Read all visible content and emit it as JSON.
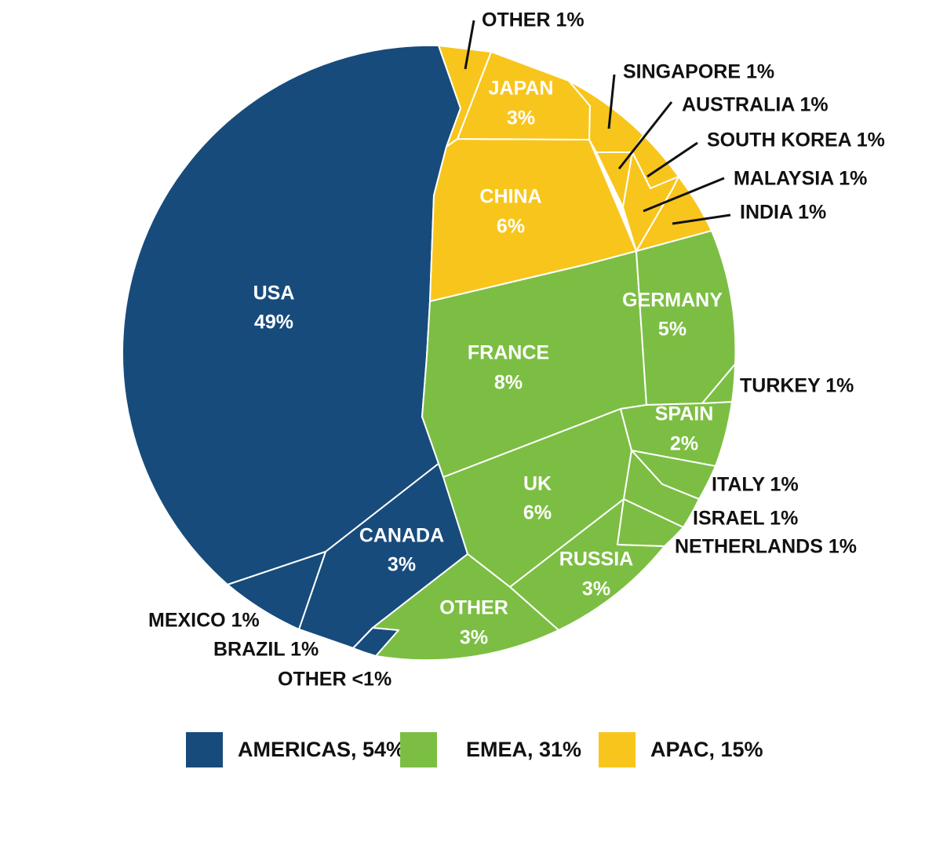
{
  "chart_data": {
    "type": "voronoi-treemap",
    "title": "",
    "regions": [
      {
        "name": "AMERICAS",
        "label": "AMERICAS, 54%",
        "value": 54,
        "color": "#174b7b"
      },
      {
        "name": "EMEA",
        "label": "EMEA, 31%",
        "value": 31,
        "color": "#7cbe43"
      },
      {
        "name": "APAC",
        "label": "APAC, 15%",
        "value": 15,
        "color": "#f8c51c"
      }
    ],
    "cells": [
      {
        "id": "usa",
        "region": "AMERICAS",
        "name": "USA",
        "pct": "49%",
        "value": 49
      },
      {
        "id": "canada",
        "region": "AMERICAS",
        "name": "CANADA",
        "pct": "3%",
        "value": 3
      },
      {
        "id": "mexico",
        "region": "AMERICAS",
        "name": "MEXICO 1%",
        "value": 1
      },
      {
        "id": "brazil",
        "region": "AMERICAS",
        "name": "BRAZIL 1%",
        "value": 1
      },
      {
        "id": "americas-other",
        "region": "AMERICAS",
        "name": "OTHER <1%",
        "value": 0.5
      },
      {
        "id": "china",
        "region": "APAC",
        "name": "CHINA",
        "pct": "6%",
        "value": 6
      },
      {
        "id": "japan",
        "region": "APAC",
        "name": "JAPAN",
        "pct": "3%",
        "value": 3
      },
      {
        "id": "apac-other",
        "region": "APAC",
        "name": "OTHER 1%",
        "value": 1
      },
      {
        "id": "singapore",
        "region": "APAC",
        "name": "SINGAPORE 1%",
        "value": 1
      },
      {
        "id": "australia",
        "region": "APAC",
        "name": "AUSTRALIA 1%",
        "value": 1
      },
      {
        "id": "south-korea",
        "region": "APAC",
        "name": "SOUTH KOREA 1%",
        "value": 1
      },
      {
        "id": "malaysia",
        "region": "APAC",
        "name": "MALAYSIA 1%",
        "value": 1
      },
      {
        "id": "india",
        "region": "APAC",
        "name": "INDIA 1%",
        "value": 1
      },
      {
        "id": "france",
        "region": "EMEA",
        "name": "FRANCE",
        "pct": "8%",
        "value": 8
      },
      {
        "id": "uk",
        "region": "EMEA",
        "name": "UK",
        "pct": "6%",
        "value": 6
      },
      {
        "id": "germany",
        "region": "EMEA",
        "name": "GERMANY",
        "pct": "5%",
        "value": 5
      },
      {
        "id": "russia",
        "region": "EMEA",
        "name": "RUSSIA",
        "pct": "3%",
        "value": 3
      },
      {
        "id": "emea-other",
        "region": "EMEA",
        "name": "OTHER",
        "pct": "3%",
        "value": 3
      },
      {
        "id": "spain",
        "region": "EMEA",
        "name": "SPAIN",
        "pct": "2%",
        "value": 2
      },
      {
        "id": "turkey",
        "region": "EMEA",
        "name": "TURKEY 1%",
        "value": 1
      },
      {
        "id": "italy",
        "region": "EMEA",
        "name": "ITALY 1%",
        "value": 1
      },
      {
        "id": "israel",
        "region": "EMEA",
        "name": "ISRAEL 1%",
        "value": 1
      },
      {
        "id": "netherlands",
        "region": "EMEA",
        "name": "NETHERLANDS 1%",
        "value": 1
      }
    ],
    "legend": {
      "position": "bottom"
    }
  }
}
